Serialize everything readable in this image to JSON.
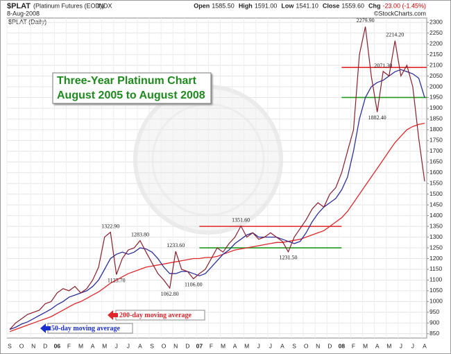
{
  "chart_data": {
    "type": "line",
    "symbol": "$PLAT",
    "description": "(Platinum Futures (EOD))",
    "exchange": "INDX",
    "date": "8-Aug-2008",
    "subtitle": "$PLAT (Daily)",
    "quote": [
      {
        "label": "Open",
        "value": "1585.50"
      },
      {
        "label": "High",
        "value": "1591.00"
      },
      {
        "label": "Low",
        "value": "1541.10"
      },
      {
        "label": "Close",
        "value": "1559.60"
      },
      {
        "label": "Chg",
        "value": "-23.00 (-1.45%)"
      }
    ],
    "credit": "©StockCharts.com",
    "title": [
      "Three-Year Platinum Chart",
      "August 2005 to August 2008"
    ],
    "categories": [
      "S",
      null,
      "O",
      null,
      "N",
      null,
      "D",
      null,
      "06",
      null,
      "F",
      null,
      "M",
      null,
      "A",
      null,
      "M",
      null,
      "J",
      null,
      "J",
      null,
      "A",
      null,
      "S",
      null,
      "O",
      null,
      "N",
      null,
      "D",
      null,
      "07",
      null,
      "F",
      null,
      "M",
      null,
      "A",
      null,
      "M",
      null,
      "J",
      null,
      "J",
      null,
      "A",
      null,
      "S",
      null,
      "O",
      null,
      "N",
      null,
      "D",
      null,
      "08",
      null,
      "F",
      null,
      "M",
      null,
      "A",
      null,
      "M",
      null,
      "J",
      null,
      "J",
      null,
      "A"
    ],
    "series": [
      {
        "name": "$PLAT",
        "color": "#8b1c2c",
        "values": [
          870,
          900,
          920,
          940,
          950,
          960,
          990,
          1000,
          1040,
          1060,
          1050,
          1070,
          1040,
          1060,
          1100,
          1160,
          1300,
          1322.9,
          1125.7,
          1200,
          1240,
          1250,
          1283.8,
          1230,
          1180,
          1130,
          1100,
          1062.8,
          1233.6,
          1150,
          1140,
          1106,
          1130,
          1150,
          1200,
          1250,
          1230,
          1270,
          1300,
          1351.6,
          1300,
          1320,
          1290,
          1300,
          1320,
          1300,
          1280,
          1231.5,
          1300,
          1340,
          1380,
          1430,
          1460,
          1440,
          1500,
          1530,
          1600,
          1700,
          1800,
          2150,
          2279.9,
          2050,
          1882.4,
          2071.3,
          2050,
          2214.2,
          2050,
          2100,
          2000,
          1760,
          1559.6
        ],
        "value_labels": [
          null,
          null,
          null,
          null,
          null,
          null,
          null,
          null,
          null,
          null,
          null,
          null,
          null,
          null,
          null,
          null,
          null,
          "1322.90",
          "1125.70",
          null,
          null,
          null,
          "1283.80",
          null,
          null,
          null,
          null,
          "1062.80",
          "1233.60",
          null,
          null,
          "1106.00",
          null,
          null,
          null,
          null,
          null,
          null,
          null,
          "1351.60",
          null,
          null,
          null,
          null,
          null,
          null,
          null,
          "1231.50",
          null,
          null,
          null,
          null,
          null,
          null,
          null,
          null,
          null,
          null,
          null,
          null,
          "2279.90",
          null,
          "1882.40",
          "2071.30",
          null,
          "2214.20",
          null,
          null,
          null,
          null,
          null
        ]
      },
      {
        "name": "50-day moving average",
        "color": "#2b2f9c",
        "values": [
          870,
          880,
          895,
          905,
          920,
          935,
          950,
          965,
          985,
          1000,
          1020,
          1030,
          1040,
          1050,
          1070,
          1100,
          1150,
          1200,
          1220,
          1230,
          1220,
          1230,
          1250,
          1245,
          1230,
          1200,
          1160,
          1130,
          1130,
          1140,
          1140,
          1130,
          1120,
          1130,
          1160,
          1190,
          1220,
          1240,
          1270,
          1290,
          1310,
          1320,
          1300,
          1300,
          1300,
          1300,
          1290,
          1280,
          1270,
          1280,
          1320,
          1370,
          1410,
          1440,
          1460,
          1480,
          1520,
          1580,
          1700,
          1850,
          1950,
          2000,
          2020,
          2030,
          2050,
          2070,
          2080,
          2070,
          2060,
          2040,
          1950
        ]
      },
      {
        "name": "200-day moving average",
        "color": "#e0262a",
        "values": [
          860,
          870,
          880,
          890,
          900,
          910,
          920,
          930,
          945,
          960,
          975,
          990,
          1000,
          1015,
          1030,
          1045,
          1065,
          1085,
          1100,
          1115,
          1130,
          1140,
          1150,
          1160,
          1165,
          1170,
          1175,
          1180,
          1185,
          1190,
          1195,
          1200,
          1200,
          1205,
          1205,
          1210,
          1220,
          1230,
          1240,
          1245,
          1250,
          1255,
          1260,
          1265,
          1270,
          1275,
          1275,
          1280,
          1285,
          1290,
          1300,
          1310,
          1320,
          1330,
          1350,
          1370,
          1390,
          1420,
          1460,
          1500,
          1540,
          1580,
          1620,
          1660,
          1700,
          1740,
          1770,
          1800,
          1815,
          1825,
          1830
        ]
      }
    ],
    "levels": [
      {
        "value": 1350,
        "color": "#e0262a",
        "from": 32,
        "to": 56
      },
      {
        "value": 1250,
        "color": "#1f9a1f",
        "from": 32,
        "to": 56
      },
      {
        "value": 2090,
        "color": "#e0262a",
        "from": 56,
        "to": 70
      },
      {
        "value": 1950,
        "color": "#1f9a1f",
        "from": 56,
        "to": 70
      }
    ],
    "ylim": [
      830,
      2320
    ],
    "yticks": [
      850,
      900,
      950,
      1000,
      1050,
      1100,
      1150,
      1200,
      1250,
      1300,
      1350,
      1400,
      1450,
      1500,
      1550,
      1600,
      1650,
      1700,
      1750,
      1800,
      1850,
      1900,
      1950,
      2000,
      2050,
      2100,
      2150,
      2200,
      2250,
      2300
    ],
    "grid": true
  }
}
